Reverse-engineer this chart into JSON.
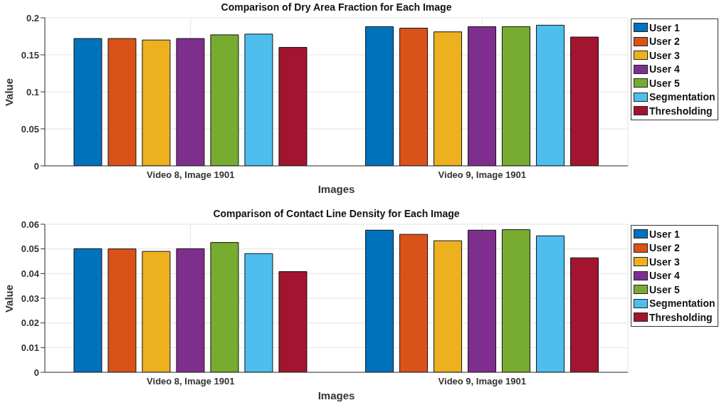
{
  "chart_data": [
    {
      "type": "bar",
      "title": "Comparison of Dry Area Fraction for Each Image",
      "xlabel": "Images",
      "ylabel": "Value",
      "categories": [
        "Video 8, Image 1901",
        "Video 9, Image 1901"
      ],
      "series": [
        {
          "name": "User 1",
          "color": "#0072bd",
          "values": [
            0.172,
            0.188
          ]
        },
        {
          "name": "User 2",
          "color": "#d95319",
          "values": [
            0.172,
            0.186
          ]
        },
        {
          "name": "User 3",
          "color": "#edb120",
          "values": [
            0.17,
            0.181
          ]
        },
        {
          "name": "User 4",
          "color": "#7e2f8e",
          "values": [
            0.172,
            0.188
          ]
        },
        {
          "name": "User 5",
          "color": "#77ac30",
          "values": [
            0.177,
            0.188
          ]
        },
        {
          "name": "Segmentation",
          "color": "#4dbeee",
          "values": [
            0.178,
            0.19
          ]
        },
        {
          "name": "Thresholding",
          "color": "#a2142f",
          "values": [
            0.16,
            0.174
          ]
        }
      ],
      "ylim": [
        0,
        0.2
      ],
      "yticks": [
        0,
        0.05,
        0.1,
        0.15,
        0.2
      ],
      "grid": true,
      "legend": "right"
    },
    {
      "type": "bar",
      "title": "Comparison of Contact Line Density for Each Image",
      "xlabel": "Images",
      "ylabel": "Value",
      "categories": [
        "Video 8, Image 1901",
        "Video 9, Image 1901"
      ],
      "series": [
        {
          "name": "User 1",
          "color": "#0072bd",
          "values": [
            0.0501,
            0.0576
          ]
        },
        {
          "name": "User 2",
          "color": "#d95319",
          "values": [
            0.05,
            0.0559
          ]
        },
        {
          "name": "User 3",
          "color": "#edb120",
          "values": [
            0.049,
            0.0533
          ]
        },
        {
          "name": "User 4",
          "color": "#7e2f8e",
          "values": [
            0.0501,
            0.0576
          ]
        },
        {
          "name": "User 5",
          "color": "#77ac30",
          "values": [
            0.0526,
            0.0578
          ]
        },
        {
          "name": "Segmentation",
          "color": "#4dbeee",
          "values": [
            0.0481,
            0.0553
          ]
        },
        {
          "name": "Thresholding",
          "color": "#a2142f",
          "values": [
            0.0408,
            0.0464
          ]
        }
      ],
      "ylim": [
        0,
        0.06
      ],
      "yticks": [
        0,
        0.01,
        0.02,
        0.03,
        0.04,
        0.05,
        0.06
      ],
      "grid": true,
      "legend": "right"
    }
  ]
}
